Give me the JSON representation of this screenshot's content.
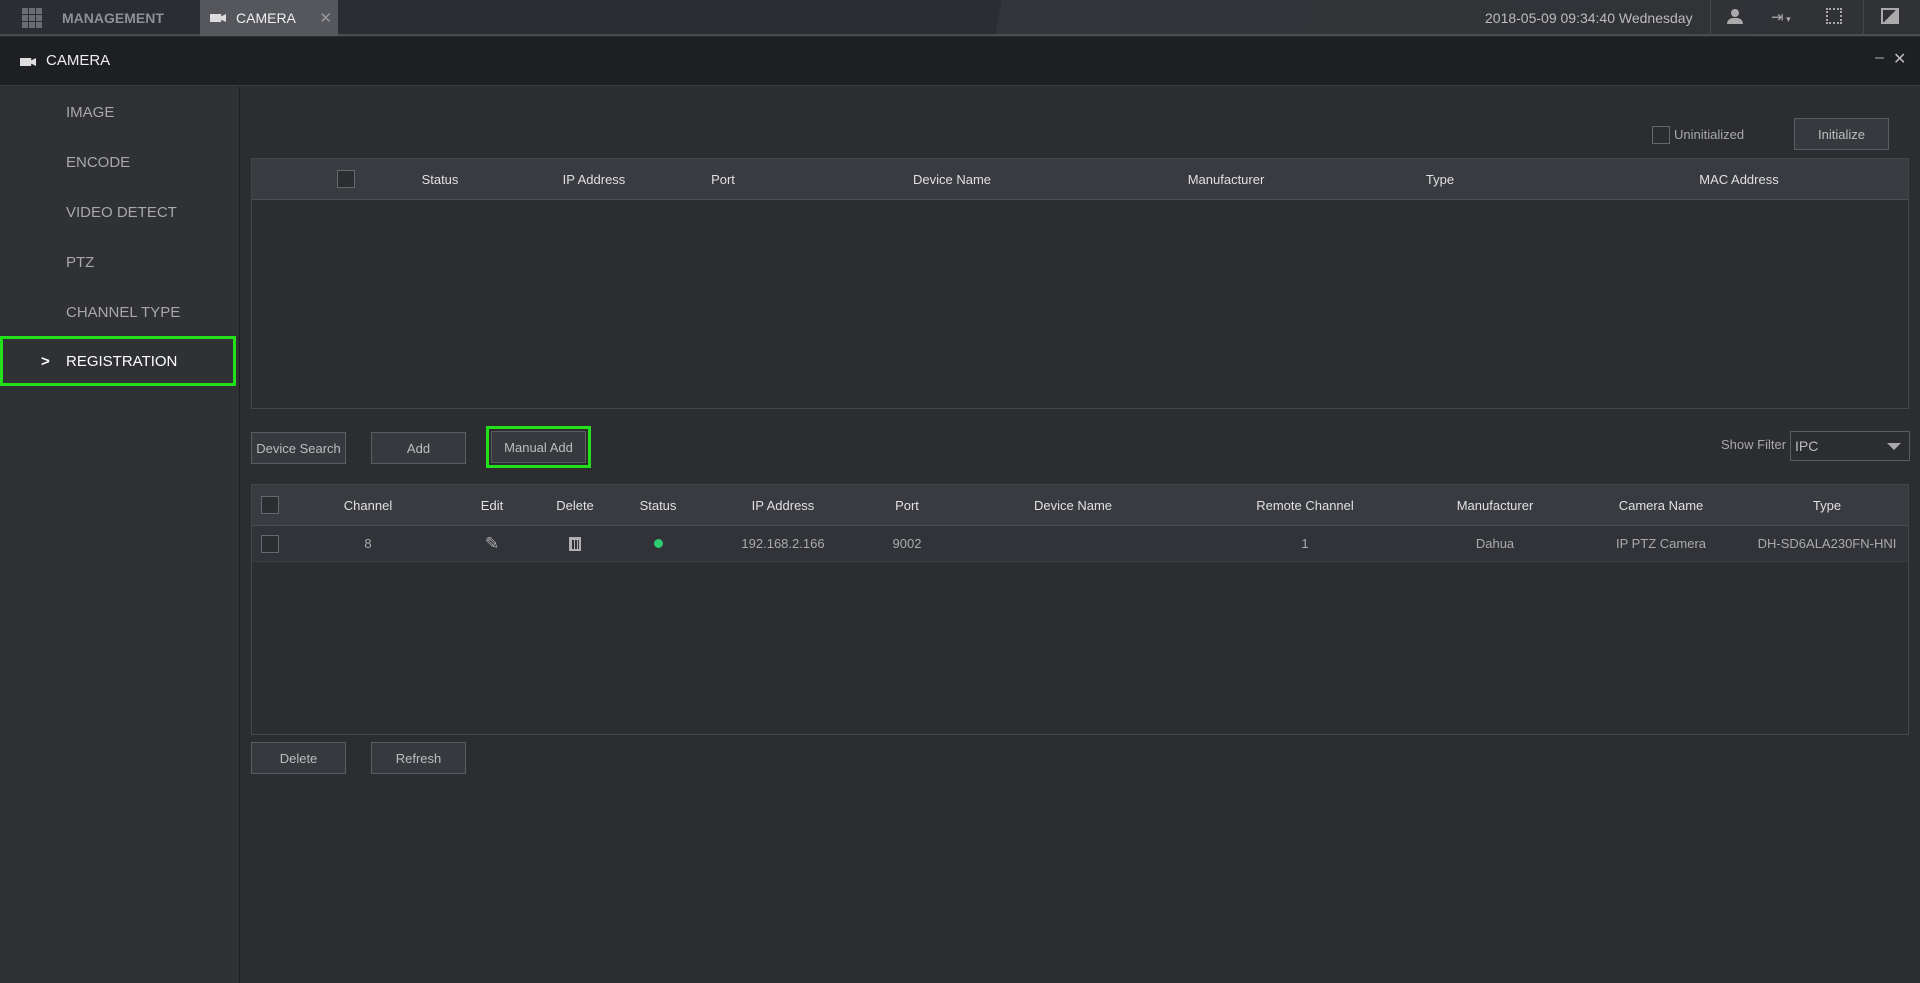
{
  "topbar": {
    "management_label": "MANAGEMENT",
    "tab_label": "CAMERA",
    "datetime": "2018-05-09 09:34:40 Wednesday"
  },
  "window": {
    "title": "CAMERA"
  },
  "sidebar": {
    "items": [
      {
        "label": "IMAGE"
      },
      {
        "label": "ENCODE"
      },
      {
        "label": "VIDEO DETECT"
      },
      {
        "label": "PTZ"
      },
      {
        "label": "CHANNEL TYPE"
      },
      {
        "label": "REGISTRATION",
        "active": true,
        "marker": ">"
      }
    ]
  },
  "search": {
    "uninitialized_label": "Uninitialized",
    "initialize_label": "Initialize",
    "columns": [
      "Status",
      "IP Address",
      "Port",
      "Device Name",
      "Manufacturer",
      "Type",
      "MAC Address"
    ]
  },
  "actions": {
    "device_search": "Device Search",
    "add": "Add",
    "manual_add": "Manual Add",
    "show_filter_label": "Show Filter",
    "show_filter_value": "IPC"
  },
  "added": {
    "columns": [
      "Channel",
      "Edit",
      "Delete",
      "Status",
      "IP Address",
      "Port",
      "Device Name",
      "Remote Channel",
      "Manufacturer",
      "Camera Name",
      "Type"
    ],
    "rows": [
      {
        "channel": "8",
        "status": "online",
        "ip": "192.168.2.166",
        "port": "9002",
        "device_name": "",
        "remote_channel": "1",
        "manufacturer": "Dahua",
        "camera_name": "IP PTZ Camera",
        "type": "DH-SD6ALA230FN-HNI"
      }
    ]
  },
  "footer": {
    "delete": "Delete",
    "refresh": "Refresh"
  },
  "colors": {
    "highlight": "#22e01a",
    "status_online": "#2ecc71"
  }
}
